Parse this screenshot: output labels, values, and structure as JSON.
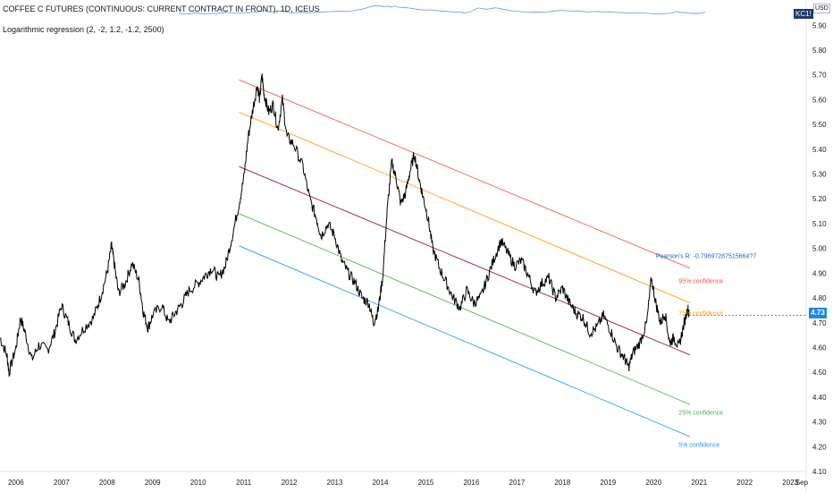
{
  "header": {
    "ticker_line": "COFFEE C FUTURES (CONTINUOUS: CURRENT CONTRACT IN FRONT), 1D, ICEUS",
    "indicator_label": "Logarithmic regression (2, -2, 1.2, -1.2, 2500)",
    "symbol_badge": "KC1!",
    "currency_badge": "USD",
    "last_price": "4.73"
  },
  "colors": {
    "price": "#000000",
    "band_upper": "#ef5350",
    "band_95": "#ff9800",
    "regression": "#880e2f",
    "band_25": "#4caf50",
    "band_5": "#2196f3",
    "price_badge": "#1e88e5"
  },
  "chart_data": {
    "type": "line",
    "title": "COFFEE C FUTURES (CONTINUOUS: CURRENT CONTRACT IN FRONT), 1D, ICEUS",
    "x_tick_labels": [
      "2006",
      "2007",
      "2008",
      "2009",
      "2010",
      "2011",
      "2012",
      "2013",
      "2014",
      "2015",
      "2016",
      "2017",
      "2018",
      "2019",
      "2020",
      "2021",
      "2022",
      "2023",
      "Sep"
    ],
    "y_tick_labels": [
      "5.90",
      "5.80",
      "5.70",
      "5.60",
      "5.50",
      "5.40",
      "5.30",
      "5.20",
      "5.10",
      "5.00",
      "4.90",
      "4.80",
      "4.70",
      "4.60",
      "4.50",
      "4.40",
      "4.30",
      "4.20",
      "4.10"
    ],
    "ylim": [
      4.1,
      5.93
    ],
    "xlim": [
      2005.65,
      2023.35
    ],
    "series": [
      {
        "kind": "price",
        "points": [
          [
            2005.65,
            4.64
          ],
          [
            2005.8,
            4.57
          ],
          [
            2005.85,
            4.5
          ],
          [
            2006.0,
            4.6
          ],
          [
            2006.1,
            4.72
          ],
          [
            2006.2,
            4.66
          ],
          [
            2006.35,
            4.55
          ],
          [
            2006.5,
            4.61
          ],
          [
            2006.7,
            4.59
          ],
          [
            2006.85,
            4.66
          ],
          [
            2007.0,
            4.77
          ],
          [
            2007.15,
            4.7
          ],
          [
            2007.3,
            4.63
          ],
          [
            2007.5,
            4.68
          ],
          [
            2007.7,
            4.72
          ],
          [
            2007.85,
            4.8
          ],
          [
            2008.0,
            4.9
          ],
          [
            2008.1,
            5.01
          ],
          [
            2008.15,
            4.95
          ],
          [
            2008.25,
            4.82
          ],
          [
            2008.4,
            4.86
          ],
          [
            2008.55,
            4.94
          ],
          [
            2008.7,
            4.87
          ],
          [
            2008.8,
            4.74
          ],
          [
            2008.9,
            4.68
          ],
          [
            2009.0,
            4.73
          ],
          [
            2009.2,
            4.77
          ],
          [
            2009.35,
            4.7
          ],
          [
            2009.5,
            4.74
          ],
          [
            2009.65,
            4.78
          ],
          [
            2009.8,
            4.83
          ],
          [
            2010.0,
            4.86
          ],
          [
            2010.15,
            4.89
          ],
          [
            2010.3,
            4.92
          ],
          [
            2010.45,
            4.88
          ],
          [
            2010.6,
            4.93
          ],
          [
            2010.75,
            5.05
          ],
          [
            2010.9,
            5.18
          ],
          [
            2011.0,
            5.28
          ],
          [
            2011.1,
            5.45
          ],
          [
            2011.2,
            5.56
          ],
          [
            2011.3,
            5.66
          ],
          [
            2011.35,
            5.6
          ],
          [
            2011.4,
            5.7
          ],
          [
            2011.45,
            5.62
          ],
          [
            2011.55,
            5.55
          ],
          [
            2011.65,
            5.58
          ],
          [
            2011.75,
            5.48
          ],
          [
            2011.85,
            5.6
          ],
          [
            2011.95,
            5.45
          ],
          [
            2012.1,
            5.42
          ],
          [
            2012.3,
            5.33
          ],
          [
            2012.45,
            5.2
          ],
          [
            2012.6,
            5.12
          ],
          [
            2012.7,
            5.05
          ],
          [
            2012.85,
            5.1
          ],
          [
            2013.0,
            5.05
          ],
          [
            2013.15,
            4.95
          ],
          [
            2013.3,
            4.9
          ],
          [
            2013.45,
            4.86
          ],
          [
            2013.6,
            4.8
          ],
          [
            2013.75,
            4.78
          ],
          [
            2013.85,
            4.7
          ],
          [
            2013.95,
            4.75
          ],
          [
            2014.05,
            4.88
          ],
          [
            2014.15,
            5.15
          ],
          [
            2014.25,
            5.35
          ],
          [
            2014.35,
            5.28
          ],
          [
            2014.45,
            5.18
          ],
          [
            2014.55,
            5.22
          ],
          [
            2014.65,
            5.31
          ],
          [
            2014.75,
            5.38
          ],
          [
            2014.85,
            5.28
          ],
          [
            2014.95,
            5.2
          ],
          [
            2015.05,
            5.12
          ],
          [
            2015.15,
            5.0
          ],
          [
            2015.3,
            4.92
          ],
          [
            2015.45,
            4.86
          ],
          [
            2015.6,
            4.8
          ],
          [
            2015.75,
            4.76
          ],
          [
            2015.9,
            4.83
          ],
          [
            2016.05,
            4.78
          ],
          [
            2016.2,
            4.8
          ],
          [
            2016.35,
            4.88
          ],
          [
            2016.5,
            4.96
          ],
          [
            2016.65,
            5.03
          ],
          [
            2016.8,
            4.98
          ],
          [
            2016.95,
            4.93
          ],
          [
            2017.1,
            4.95
          ],
          [
            2017.25,
            4.89
          ],
          [
            2017.4,
            4.82
          ],
          [
            2017.55,
            4.86
          ],
          [
            2017.7,
            4.88
          ],
          [
            2017.85,
            4.8
          ],
          [
            2018.0,
            4.84
          ],
          [
            2018.15,
            4.78
          ],
          [
            2018.3,
            4.74
          ],
          [
            2018.45,
            4.72
          ],
          [
            2018.6,
            4.66
          ],
          [
            2018.75,
            4.68
          ],
          [
            2018.9,
            4.73
          ],
          [
            2019.05,
            4.67
          ],
          [
            2019.2,
            4.6
          ],
          [
            2019.35,
            4.56
          ],
          [
            2019.45,
            4.52
          ],
          [
            2019.55,
            4.58
          ],
          [
            2019.7,
            4.62
          ],
          [
            2019.85,
            4.7
          ],
          [
            2019.95,
            4.88
          ],
          [
            2020.05,
            4.78
          ],
          [
            2020.15,
            4.7
          ],
          [
            2020.25,
            4.74
          ],
          [
            2020.35,
            4.62
          ],
          [
            2020.45,
            4.64
          ],
          [
            2020.55,
            4.6
          ],
          [
            2020.65,
            4.68
          ],
          [
            2020.75,
            4.76
          ],
          [
            2020.78,
            4.73
          ]
        ]
      },
      {
        "kind": "band",
        "label": "",
        "start": [
          2010.9,
          5.68
        ],
        "end": [
          2020.8,
          4.92
        ]
      },
      {
        "kind": "band",
        "label": "95% confidence",
        "start": [
          2010.9,
          5.55
        ],
        "end": [
          2020.8,
          4.78
        ]
      },
      {
        "kind": "band",
        "label": "",
        "start": [
          2010.9,
          5.33
        ],
        "end": [
          2020.8,
          4.57
        ]
      },
      {
        "kind": "band",
        "label": "25% confidence",
        "start": [
          2010.9,
          5.14
        ],
        "end": [
          2020.8,
          4.37
        ]
      },
      {
        "kind": "band",
        "label": "5% confidence",
        "start": [
          2010.9,
          5.01
        ],
        "end": [
          2020.8,
          4.24
        ]
      }
    ],
    "annotations": [
      {
        "text": "Pearson's R: -0.79697287515664?7",
        "x": 2020.05,
        "y": 4.96,
        "color": "#1565c0"
      },
      {
        "text": "95% confidence",
        "x": 2020.55,
        "y": 4.86,
        "color": "#ef5350"
      },
      {
        "text": "75% confidence",
        "x": 2020.55,
        "y": 4.73,
        "color": "#ff9800"
      },
      {
        "text": "25% confidence",
        "x": 2020.55,
        "y": 4.33,
        "color": "#4caf50"
      },
      {
        "text": "5% confidence",
        "x": 2020.55,
        "y": 4.2,
        "color": "#2196f3"
      }
    ],
    "grid": false
  }
}
